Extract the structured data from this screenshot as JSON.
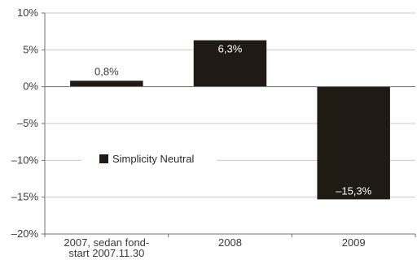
{
  "chart_data": {
    "type": "bar",
    "categories": [
      [
        "2007, sedan fond-",
        "start 2007.11.30"
      ],
      [
        "2008"
      ],
      [
        "2009"
      ]
    ],
    "series": [
      {
        "name": "Simplicity Neutral",
        "values": [
          0.8,
          6.3,
          -15.3
        ],
        "value_labels": [
          "0,8%",
          "6,3%",
          "–15,3%"
        ],
        "label_colors": [
          "#3a3a3a",
          "#ffffff",
          "#ffffff"
        ]
      }
    ],
    "ylim": [
      -20,
      10
    ],
    "yticks": [
      10,
      5,
      0,
      -5,
      -10,
      -15,
      -20
    ],
    "ytick_labels": [
      "10%",
      "5%",
      "0%",
      "–5%",
      "–10%",
      "–15%",
      "–20%"
    ],
    "title": "",
    "xlabel": "",
    "ylabel": "",
    "grid": true,
    "legend_position": "left-middle"
  },
  "colors": {
    "bar": "#1f1a14",
    "grid": "#c8c8c8",
    "axis": "#6f6f6f"
  }
}
